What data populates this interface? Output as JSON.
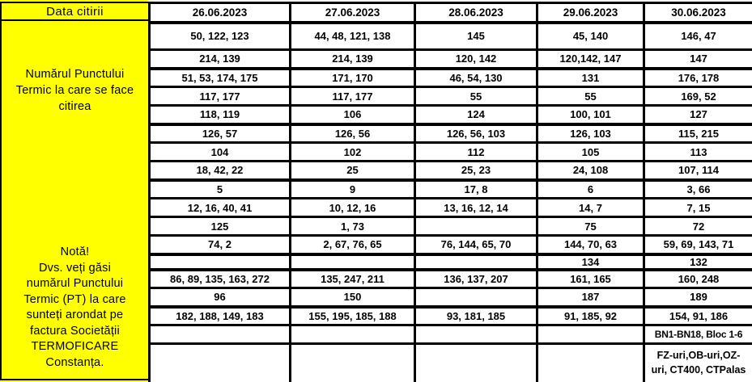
{
  "header": {
    "reading_date_label": "Data citirii",
    "dates": [
      "26.06.2023",
      "27.06.2023",
      "28.06.2023",
      "29.06.2023",
      "30.06.2023"
    ]
  },
  "left_panel": {
    "title": "Numărul Punctului\nTermic la care se face\ncitirea",
    "note": "Notă!\nDvs. veți găsi\nnumărul Punctului\nTermic (PT) la care\nsunteți arondat pe\nfactura Societății\nTERMOFICARE\nConstanța."
  },
  "colors": {
    "highlight_yellow": "#FFFF00",
    "border_black": "#000000",
    "cell_white": "#FFFFFF"
  },
  "table": {
    "rows": [
      [
        "50, 122, 123",
        "44, 48, 121, 138",
        "145",
        "45, 140",
        "146, 47"
      ],
      [
        "214, 139",
        "214, 139",
        "120, 142",
        "120,142, 147",
        "147"
      ],
      [
        "51, 53, 174, 175",
        "171, 170",
        "46, 54, 130",
        "131",
        "176, 178"
      ],
      [
        "117, 177",
        "117, 177",
        "55",
        "55",
        "169, 52"
      ],
      [
        "118, 119",
        "106",
        "124",
        "100, 101",
        "127"
      ],
      [
        "126, 57",
        "126, 56",
        "126, 56, 103",
        "126, 103",
        "115, 215"
      ],
      [
        "104",
        "102",
        "112",
        "105",
        "113"
      ],
      [
        "18, 42, 22",
        "25",
        "25, 23",
        "24, 108",
        "107, 114"
      ],
      [
        "5",
        "9",
        "17, 8",
        "6",
        "3, 66"
      ],
      [
        "12, 16, 40, 41",
        "10, 12, 16",
        "13, 16, 12, 14",
        "14, 7",
        "7, 15"
      ],
      [
        "125",
        "1, 73",
        "",
        "75",
        "72"
      ],
      [
        "74, 2",
        "2, 67, 76, 65",
        "76, 144, 65, 70",
        "144, 70, 63",
        "59, 69, 143, 71"
      ],
      [
        "",
        "",
        "",
        "134",
        "132"
      ],
      [
        "86, 89, 135, 163, 272",
        "135, 247, 211",
        "136, 137, 207",
        "161, 165",
        "160, 248"
      ],
      [
        "96",
        "150",
        "",
        "187",
        "189"
      ],
      [
        "182, 188, 149, 183",
        "155, 195, 185, 188",
        "93, 181, 185",
        "91, 185, 92",
        "154, 91, 186"
      ],
      [
        "",
        "",
        "",
        "",
        "BN1-BN18, Bloc 1-6"
      ],
      [
        "",
        "",
        "",
        "",
        "FZ-uri,OB-uri,OZ-\nuri, CT400, CTPalas"
      ]
    ]
  }
}
